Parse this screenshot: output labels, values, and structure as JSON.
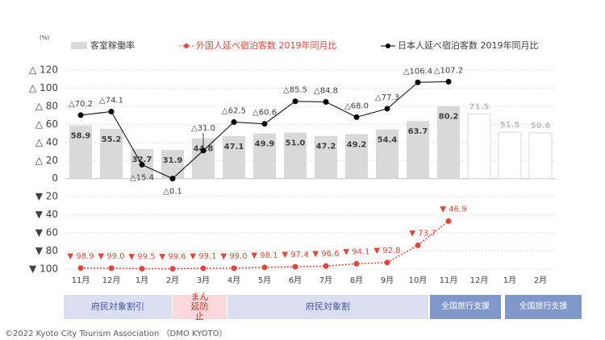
{
  "chart_data": {
    "type": "bar_line",
    "unit_label": "(%)",
    "categories": [
      "11月",
      "12月",
      "1月",
      "2月",
      "3月",
      "4月",
      "5月",
      "6月",
      "7月",
      "8月",
      "9月",
      "10月",
      "11月",
      "12月",
      "1月",
      "2月"
    ],
    "ylim": [
      -100,
      120
    ],
    "yticks": [
      {
        "value": 120,
        "label": "△ 120"
      },
      {
        "value": 100,
        "label": "△ 100"
      },
      {
        "value": 80,
        "label": "△ 80"
      },
      {
        "value": 60,
        "label": "△ 60"
      },
      {
        "value": 40,
        "label": "△ 40"
      },
      {
        "value": 20,
        "label": "△ 20"
      },
      0,
      {
        "value": -20,
        "label": "▼ 20"
      },
      {
        "value": -40,
        "label": "▼ 40"
      },
      {
        "value": -60,
        "label": "▼ 60"
      },
      {
        "value": -80,
        "label": "▼ 80"
      },
      {
        "value": -100,
        "label": "▼ 100"
      }
    ],
    "grid": true,
    "series": [
      {
        "name": "客室稼働率",
        "type": "bar",
        "color": "#d9d9d9",
        "colors": [
          "#d9d9d9",
          "#d9d9d9",
          "#d9d9d9",
          "#d9d9d9",
          "#d9d9d9",
          "#d9d9d9",
          "#d9d9d9",
          "#d9d9d9",
          "#d9d9d9",
          "#d9d9d9",
          "#d9d9d9",
          "#d9d9d9",
          "#d9d9d9",
          "#ffffff",
          "#ffffff",
          "#ffffff"
        ],
        "values": [
          58.9,
          55.2,
          32.7,
          31.9,
          44.8,
          47.1,
          49.9,
          51.0,
          47.2,
          49.2,
          54.4,
          63.7,
          80.2,
          71.5,
          51.5,
          50.6
        ],
        "value_labels": [
          "58.9",
          "55.2",
          "32.7",
          "31.9",
          "44.8",
          "47.1",
          "49.9",
          "51.0",
          "47.2",
          "49.2",
          "54.4",
          "63.7",
          "80.2",
          "71.5",
          "51.5",
          "50.6"
        ]
      },
      {
        "name": "外国人延べ宿泊客数 2019年同月比",
        "type": "line",
        "color": "#e0473a",
        "dashed": true,
        "values": [
          -98.9,
          -99.0,
          -99.5,
          -99.6,
          -99.1,
          -99.0,
          -98.1,
          -97.4,
          -96.6,
          -94.1,
          -92.8,
          -73.7,
          -46.9,
          null,
          null,
          null
        ],
        "value_labels": [
          "▼ 98.9",
          "▼ 99.0",
          "▼ 99.5",
          "▼ 99.6",
          "▼ 99.1",
          "▼ 99.0",
          "▼ 98.1",
          "▼ 97.4",
          "▼ 96.6",
          "▼ 94.1",
          "▼ 92.8",
          "▼ 73.7",
          "▼ 46.9",
          null,
          null,
          null
        ]
      },
      {
        "name": "日本人延べ宿泊客数 2019年同月比",
        "type": "line",
        "color": "#000000",
        "dashed": false,
        "values": [
          70.2,
          74.1,
          15.4,
          0.1,
          31.0,
          62.5,
          60.6,
          85.5,
          84.8,
          68.0,
          77.3,
          106.4,
          107.2,
          null,
          null,
          null
        ],
        "value_labels": [
          "△70.2",
          "△74.1",
          "△15.4",
          "△0.1",
          "△31.0",
          "△62.5",
          "△60.6",
          "△85.5",
          "△84.8",
          "△68.0",
          "△77.3",
          "△106.4",
          "△107.2",
          null,
          null,
          null
        ]
      }
    ],
    "periods": [
      "府民対象割引",
      "まん延防止",
      "府民対象割",
      "全国旅行支援",
      "全国旅行支援"
    ],
    "footer": "©2022 Kyoto City Tourism Association （DMO KYOTO）"
  }
}
